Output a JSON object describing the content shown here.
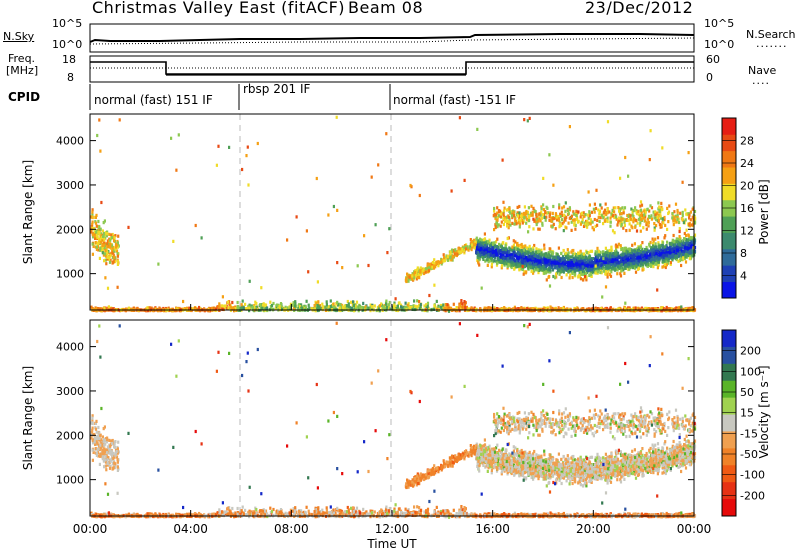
{
  "header": {
    "title": "Christmas Valley East (fitACF)",
    "beam": "Beam 08",
    "date": "23/Dec/2012"
  },
  "sky_panel": {
    "left_label": "N.Sky",
    "left_ticks": [
      "10^5",
      "10^0"
    ],
    "right_ticks": [
      "10^5",
      "10^0"
    ],
    "right_label": "N.Search",
    "right_legend": "......."
  },
  "freq_panel": {
    "left_label_1": "Freq.",
    "left_label_2": "[MHz]",
    "left_ticks": [
      "18",
      "8"
    ],
    "right_ticks": [
      "60",
      "0"
    ],
    "right_label": "Nave",
    "right_legend": "...."
  },
  "cpid": {
    "label": "CPID",
    "segments": [
      {
        "text": "normal (fast) 151 IF",
        "start": 0,
        "end": 6
      },
      {
        "text": "rbsp 201 IF",
        "start": 6,
        "end": 12
      },
      {
        "text": "normal (fast) -151 IF",
        "start": 12,
        "end": 24
      }
    ]
  },
  "chart_data": [
    {
      "type": "heatmap",
      "name": "power",
      "ylabel": "Slant Range [km]",
      "yticks": [
        "1000",
        "2000",
        "3000",
        "4000"
      ],
      "ylim": [
        180,
        4600
      ],
      "colorbar": {
        "label": "Power [dB]",
        "ticks": [
          "4",
          "8",
          "12",
          "16",
          "20",
          "24",
          "28"
        ],
        "colors": [
          "#0a14e6",
          "#1e40b4",
          "#2f6b9a",
          "#3c8a6e",
          "#4fa056",
          "#8cc850",
          "#f0dc28",
          "#f5a014",
          "#f07814",
          "#e84a14",
          "#e61e14"
        ]
      }
    },
    {
      "type": "heatmap",
      "name": "velocity",
      "ylabel": "Slant Range [km]",
      "yticks": [
        "1000",
        "2000",
        "3000",
        "4000"
      ],
      "ylim": [
        180,
        4600
      ],
      "xlabel": "Time UT",
      "xticks": [
        "00:00",
        "04:00",
        "08:00",
        "12:00",
        "16:00",
        "20:00",
        "00:00"
      ],
      "xlim": [
        0,
        24
      ],
      "colorbar": {
        "label": "Velocity [m s⁻¹]",
        "ticks": [
          "200",
          "100",
          "50",
          "15",
          "-15",
          "-50",
          "-100",
          "-200"
        ],
        "colors": [
          "#1428c8",
          "#2850a0",
          "#327850",
          "#5ab428",
          "#a0d250",
          "#c8c8c0",
          "#f0a050",
          "#f08228",
          "#f05a14",
          "#e63214",
          "#e60a0a"
        ]
      }
    }
  ]
}
